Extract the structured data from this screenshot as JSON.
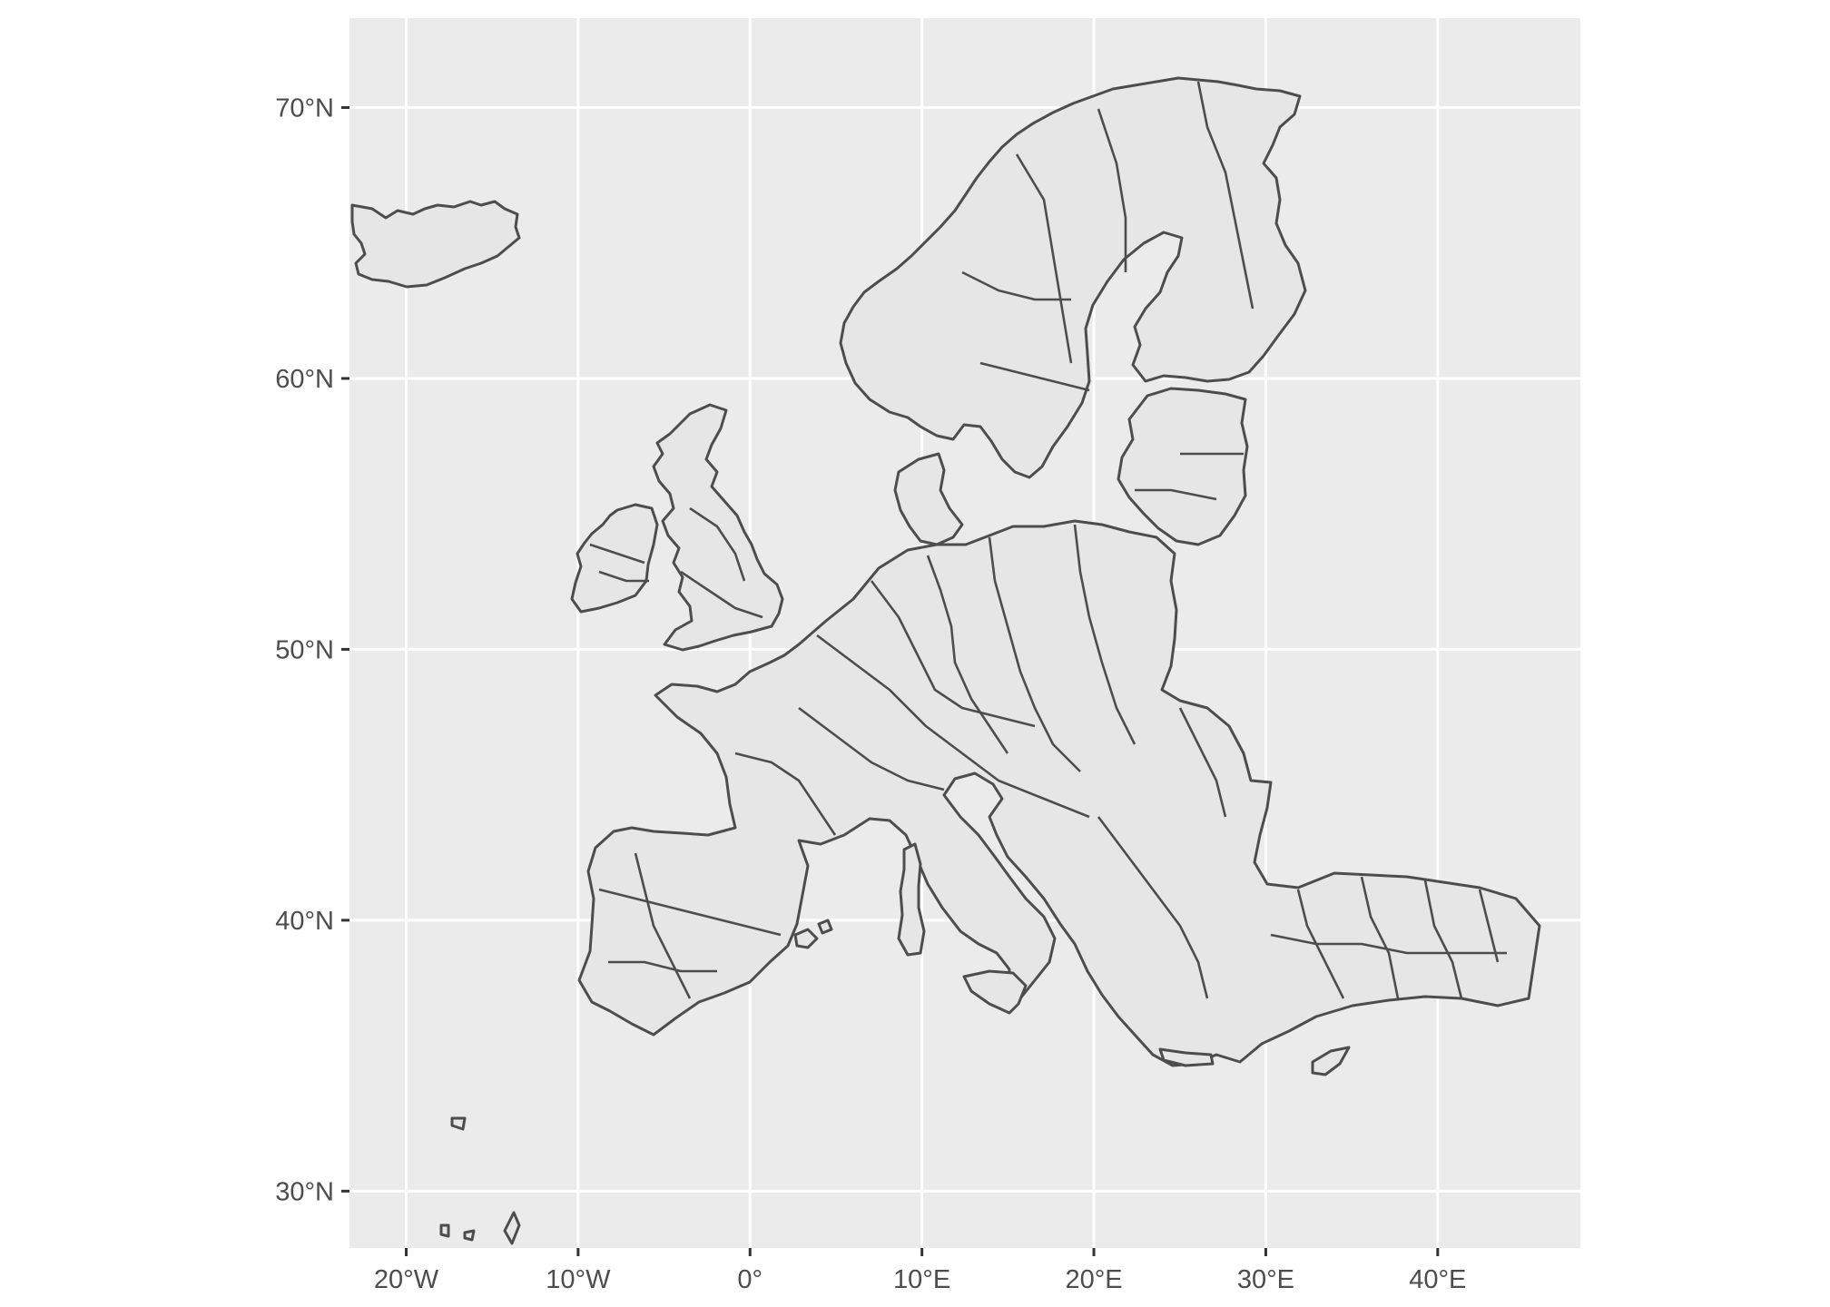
{
  "map": {
    "x_ticks": [
      {
        "lon": -20,
        "label": "20°W"
      },
      {
        "lon": -10,
        "label": "10°W"
      },
      {
        "lon": 0,
        "label": "0°"
      },
      {
        "lon": 10,
        "label": "10°E"
      },
      {
        "lon": 20,
        "label": "20°E"
      },
      {
        "lon": 30,
        "label": "30°E"
      },
      {
        "lon": 40,
        "label": "40°E"
      }
    ],
    "y_ticks": [
      {
        "lat": 30,
        "label": "30°N"
      },
      {
        "lat": 40,
        "label": "40°N"
      },
      {
        "lat": 50,
        "label": "50°N"
      },
      {
        "lat": 60,
        "label": "60°N"
      },
      {
        "lat": 70,
        "label": "70°N"
      }
    ],
    "lon_range": [
      -23.3,
      48.3
    ],
    "lat_range": [
      27.9,
      73.3
    ],
    "colors": {
      "panel_background": "#ebebeb",
      "grid": "#ffffff",
      "land_fill": "#e6e6e6",
      "border": "#4d4d4d",
      "tick_text": "#4d4d4d"
    }
  }
}
